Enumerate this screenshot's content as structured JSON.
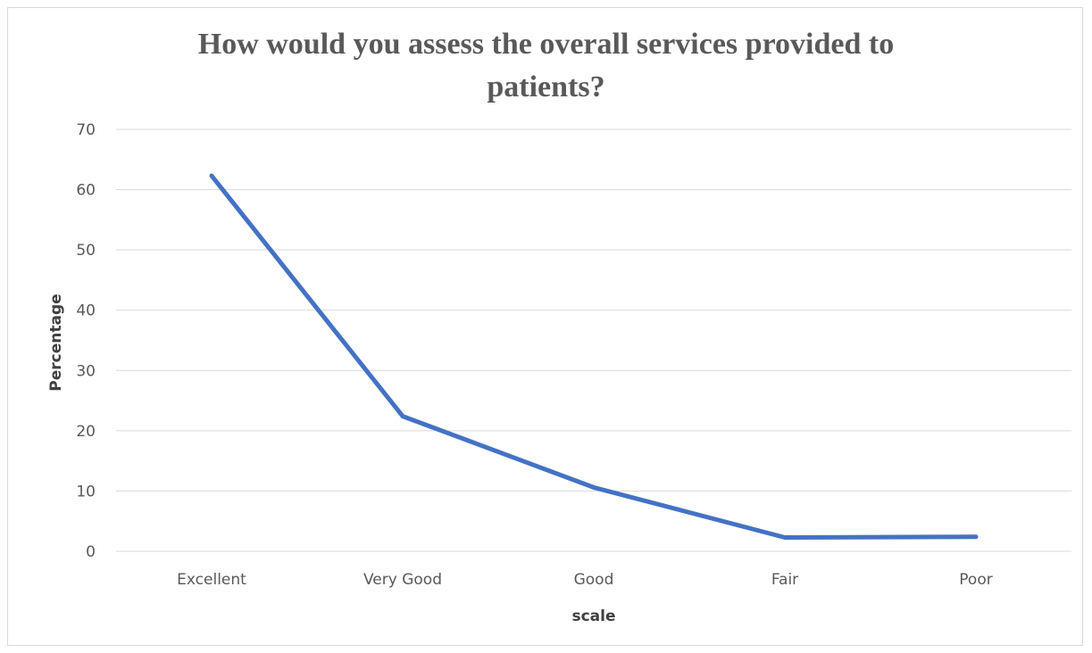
{
  "chart_data": {
    "type": "line",
    "title_lines": [
      "How would you assess the overall services provided to",
      "patients?"
    ],
    "xlabel": "scale",
    "ylabel": "Percentage",
    "categories": [
      "Excellent",
      "Very Good",
      "Good",
      "Fair",
      "Poor"
    ],
    "series": [
      {
        "values": [
          62.3,
          22.4,
          10.6,
          2.3,
          2.4
        ],
        "color": "#4472c4"
      }
    ],
    "ylim": [
      0,
      70
    ],
    "yticks": [
      0,
      10,
      20,
      30,
      40,
      50,
      60,
      70
    ],
    "grid": true,
    "legend": "none"
  }
}
